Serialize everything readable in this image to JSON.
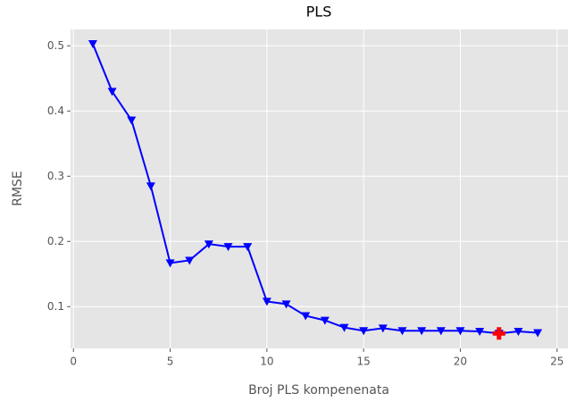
{
  "chart_data": {
    "type": "line",
    "title": "PLS",
    "xlabel": "Broj PLS kompenenata",
    "ylabel": "RMSE",
    "x": [
      1,
      2,
      3,
      4,
      5,
      6,
      7,
      8,
      9,
      10,
      11,
      12,
      13,
      14,
      15,
      16,
      17,
      18,
      19,
      20,
      21,
      22,
      23,
      24
    ],
    "series": [
      {
        "color": "#0000ff",
        "marker": "triangle-down",
        "values": [
          0.503,
          0.43,
          0.386,
          0.285,
          0.167,
          0.171,
          0.196,
          0.192,
          0.192,
          0.108,
          0.104,
          0.086,
          0.079,
          0.068,
          0.063,
          0.067,
          0.063,
          0.063,
          0.063,
          0.063,
          0.062,
          0.059,
          0.062,
          0.06
        ]
      }
    ],
    "highlight": {
      "x": 22,
      "value": 0.059,
      "color": "#ff0000",
      "marker": "plus"
    },
    "xlim": [
      -0.15,
      25.15
    ],
    "ylim": [
      0.036,
      0.525
    ],
    "xticks": [
      0,
      5,
      10,
      15,
      20,
      25
    ],
    "yticks": [
      0.1,
      0.2,
      0.3,
      0.4,
      0.5
    ],
    "grid": true
  }
}
